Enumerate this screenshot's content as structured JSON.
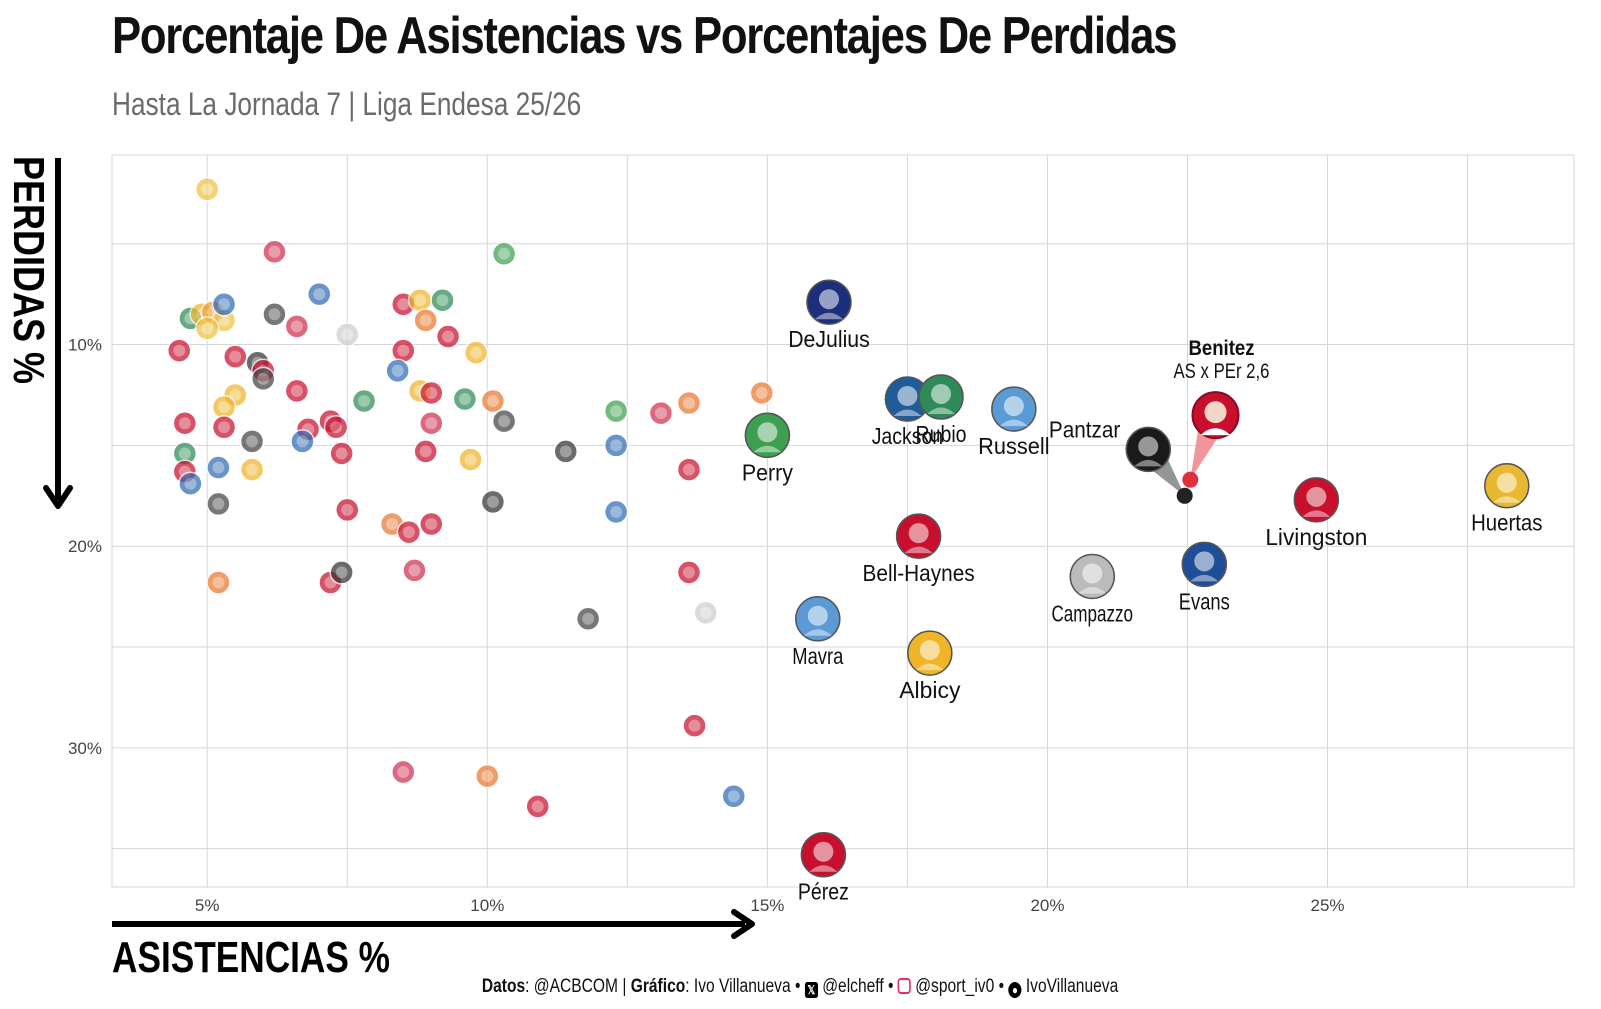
{
  "header": {
    "title": "Porcentaje De Asistencias vs Porcentajes De Perdidas",
    "subtitle": "Hasta La Jornada 7 | Liga Endesa 25/26"
  },
  "caption": {
    "datos_label": "Datos",
    "datos_value": ": @ACBCOM | ",
    "grafico_label": "Gráfico",
    "grafico_value": ": Ivo Villanueva • ",
    "x_handle": "@elcheff",
    "ig_handle": "@sport_iv0",
    "gh_handle": "IvoVillanueva",
    "sep": " • "
  },
  "icons": {
    "x": "x-logo-icon",
    "instagram": "instagram-icon",
    "github": "github-icon"
  },
  "colors": {
    "grid": "#d6d6d6",
    "text": "#111111",
    "subtitle": "#6b6b6b",
    "pantzar": "#222222",
    "benitez": "#e03040",
    "benitez_link": "#f08a90",
    "pantzar_link": "#8a8a8a"
  },
  "chart_data": {
    "type": "scatter",
    "xlabel": "ASISTENCIAS %",
    "ylabel": "PERDIDAS %",
    "xlim": [
      3.3,
      29.4
    ],
    "ylim": [
      0.6,
      36.9
    ],
    "y_reversed": true,
    "x_ticks": [
      5,
      10,
      15,
      20,
      25
    ],
    "x_tick_labels": [
      "5%",
      "10%",
      "15%",
      "20%",
      "25%"
    ],
    "y_ticks": [
      10,
      20,
      30
    ],
    "y_tick_labels": [
      "10%",
      "20%",
      "30%"
    ],
    "grid": true,
    "highlighted": [
      {
        "name": "DeJulius",
        "x": 16.1,
        "y": 7.9,
        "color": "#1b2f7a",
        "label_pos": "below"
      },
      {
        "name": "Jackson",
        "x": 17.5,
        "y": 12.7,
        "color": "#1f5c99",
        "label_pos": "below"
      },
      {
        "name": "Rubio",
        "x": 18.1,
        "y": 12.6,
        "color": "#2e8b57",
        "label_pos": "below"
      },
      {
        "name": "Russell",
        "x": 19.4,
        "y": 13.2,
        "color": "#5b9bd5",
        "label_pos": "below"
      },
      {
        "name": "Perry",
        "x": 15.0,
        "y": 14.5,
        "color": "#3ca050",
        "label_pos": "below"
      },
      {
        "name": "Pantzar",
        "x": 21.8,
        "y": 15.2,
        "color": "#1a1a1a",
        "label_pos": "left"
      },
      {
        "name": "Livingston",
        "x": 24.8,
        "y": 17.7,
        "color": "#c8102e",
        "label_pos": "below"
      },
      {
        "name": "Huertas",
        "x": 28.2,
        "y": 17.0,
        "color": "#e8b830",
        "label_pos": "below"
      },
      {
        "name": "Bell-Haynes",
        "x": 17.7,
        "y": 19.5,
        "color": "#c8102e",
        "label_pos": "below"
      },
      {
        "name": "Evans",
        "x": 22.8,
        "y": 20.9,
        "color": "#1f4e99",
        "label_pos": "below"
      },
      {
        "name": "Campazzo",
        "x": 20.8,
        "y": 21.5,
        "color": "#bbbbbb",
        "label_pos": "below"
      },
      {
        "name": "Mavra",
        "x": 15.9,
        "y": 23.6,
        "color": "#5b9bd5",
        "label_pos": "below"
      },
      {
        "name": "Albicy",
        "x": 17.9,
        "y": 25.3,
        "color": "#f0b429",
        "label_pos": "below"
      },
      {
        "name": "Pérez",
        "x": 16.0,
        "y": 35.3,
        "color": "#c8102e",
        "label_pos": "below"
      }
    ],
    "annotation": {
      "text_bold": "Benitez",
      "text": "AS x PEr 2,6",
      "pantzar_point": {
        "x": 22.45,
        "y": 17.5
      },
      "benitez_point": {
        "x": 22.55,
        "y": 16.7
      },
      "benitez_badge": {
        "x": 23.0,
        "y": 13.5
      }
    },
    "background_points": [
      {
        "x": 5.0,
        "y": 2.3,
        "color": "#f0c040"
      },
      {
        "x": 6.2,
        "y": 5.4,
        "color": "#d03050"
      },
      {
        "x": 10.3,
        "y": 5.5,
        "color": "#3ca050"
      },
      {
        "x": 7.0,
        "y": 7.5,
        "color": "#2f6bb3"
      },
      {
        "x": 4.7,
        "y": 8.7,
        "color": "#2e8b57"
      },
      {
        "x": 4.9,
        "y": 8.5,
        "color": "#f0b429"
      },
      {
        "x": 5.1,
        "y": 8.4,
        "color": "#e8a040"
      },
      {
        "x": 5.3,
        "y": 8.8,
        "color": "#f0c040"
      },
      {
        "x": 5.0,
        "y": 9.2,
        "color": "#f0c040"
      },
      {
        "x": 5.3,
        "y": 8.0,
        "color": "#2f6bb3"
      },
      {
        "x": 6.2,
        "y": 8.5,
        "color": "#444444"
      },
      {
        "x": 6.6,
        "y": 9.1,
        "color": "#d03050"
      },
      {
        "x": 7.5,
        "y": 9.5,
        "color": "#cccccc"
      },
      {
        "x": 8.5,
        "y": 8.0,
        "color": "#c8102e"
      },
      {
        "x": 8.8,
        "y": 7.8,
        "color": "#f0b429"
      },
      {
        "x": 9.2,
        "y": 7.8,
        "color": "#2e8b57"
      },
      {
        "x": 8.9,
        "y": 8.8,
        "color": "#e87830"
      },
      {
        "x": 9.3,
        "y": 9.6,
        "color": "#c8102e"
      },
      {
        "x": 4.5,
        "y": 10.3,
        "color": "#c8102e"
      },
      {
        "x": 5.5,
        "y": 10.6,
        "color": "#c8102e"
      },
      {
        "x": 5.9,
        "y": 10.9,
        "color": "#333333"
      },
      {
        "x": 6.0,
        "y": 11.3,
        "color": "#c8102e"
      },
      {
        "x": 6.0,
        "y": 11.7,
        "color": "#444444"
      },
      {
        "x": 8.5,
        "y": 10.3,
        "color": "#c8102e"
      },
      {
        "x": 8.4,
        "y": 11.3,
        "color": "#2f6bb3"
      },
      {
        "x": 9.8,
        "y": 10.4,
        "color": "#f0b429"
      },
      {
        "x": 5.5,
        "y": 12.5,
        "color": "#f0b429"
      },
      {
        "x": 5.3,
        "y": 13.1,
        "color": "#f0b429"
      },
      {
        "x": 6.6,
        "y": 12.3,
        "color": "#c8102e"
      },
      {
        "x": 7.8,
        "y": 12.8,
        "color": "#2e8b57"
      },
      {
        "x": 8.8,
        "y": 12.3,
        "color": "#f0b429"
      },
      {
        "x": 9.0,
        "y": 12.4,
        "color": "#c8102e"
      },
      {
        "x": 9.6,
        "y": 12.7,
        "color": "#2e8b57"
      },
      {
        "x": 10.1,
        "y": 12.8,
        "color": "#e87830"
      },
      {
        "x": 4.6,
        "y": 13.9,
        "color": "#c8102e"
      },
      {
        "x": 5.3,
        "y": 14.1,
        "color": "#c8102e"
      },
      {
        "x": 6.8,
        "y": 14.2,
        "color": "#c8102e"
      },
      {
        "x": 7.2,
        "y": 13.8,
        "color": "#c8102e"
      },
      {
        "x": 7.3,
        "y": 14.1,
        "color": "#c8102e"
      },
      {
        "x": 9.0,
        "y": 13.9,
        "color": "#d03050"
      },
      {
        "x": 10.3,
        "y": 13.8,
        "color": "#444444"
      },
      {
        "x": 12.3,
        "y": 13.3,
        "color": "#3ca050"
      },
      {
        "x": 13.1,
        "y": 13.4,
        "color": "#d03050"
      },
      {
        "x": 13.6,
        "y": 12.9,
        "color": "#e87830"
      },
      {
        "x": 14.9,
        "y": 12.4,
        "color": "#e87830"
      },
      {
        "x": 4.6,
        "y": 15.4,
        "color": "#2e8b57"
      },
      {
        "x": 4.6,
        "y": 16.3,
        "color": "#c8102e"
      },
      {
        "x": 4.7,
        "y": 16.9,
        "color": "#2f6bb3"
      },
      {
        "x": 5.2,
        "y": 16.1,
        "color": "#2f6bb3"
      },
      {
        "x": 5.8,
        "y": 14.8,
        "color": "#444444"
      },
      {
        "x": 5.8,
        "y": 16.2,
        "color": "#f0b429"
      },
      {
        "x": 6.7,
        "y": 14.8,
        "color": "#2f6bb3"
      },
      {
        "x": 7.4,
        "y": 15.4,
        "color": "#c8102e"
      },
      {
        "x": 8.9,
        "y": 15.3,
        "color": "#c8102e"
      },
      {
        "x": 9.7,
        "y": 15.7,
        "color": "#f0b429"
      },
      {
        "x": 11.4,
        "y": 15.3,
        "color": "#333333"
      },
      {
        "x": 12.3,
        "y": 15.0,
        "color": "#2f6bb3"
      },
      {
        "x": 13.6,
        "y": 16.2,
        "color": "#c8102e"
      },
      {
        "x": 5.2,
        "y": 17.9,
        "color": "#444444"
      },
      {
        "x": 7.5,
        "y": 18.2,
        "color": "#c8102e"
      },
      {
        "x": 8.3,
        "y": 18.9,
        "color": "#e87830"
      },
      {
        "x": 8.6,
        "y": 19.3,
        "color": "#c8102e"
      },
      {
        "x": 9.0,
        "y": 18.9,
        "color": "#c8102e"
      },
      {
        "x": 10.1,
        "y": 17.8,
        "color": "#333333"
      },
      {
        "x": 12.3,
        "y": 18.3,
        "color": "#2f6bb3"
      },
      {
        "x": 5.2,
        "y": 21.8,
        "color": "#e87830"
      },
      {
        "x": 7.2,
        "y": 21.8,
        "color": "#c8102e"
      },
      {
        "x": 7.4,
        "y": 21.3,
        "color": "#333333"
      },
      {
        "x": 8.7,
        "y": 21.2,
        "color": "#d03050"
      },
      {
        "x": 13.6,
        "y": 21.3,
        "color": "#c8102e"
      },
      {
        "x": 11.8,
        "y": 23.6,
        "color": "#444444"
      },
      {
        "x": 13.9,
        "y": 23.3,
        "color": "#cccccc"
      },
      {
        "x": 13.7,
        "y": 28.9,
        "color": "#c8102e"
      },
      {
        "x": 8.5,
        "y": 31.2,
        "color": "#d03050"
      },
      {
        "x": 10.0,
        "y": 31.4,
        "color": "#e87830"
      },
      {
        "x": 10.9,
        "y": 32.9,
        "color": "#c8102e"
      },
      {
        "x": 14.4,
        "y": 32.4,
        "color": "#2f6bb3"
      }
    ]
  }
}
